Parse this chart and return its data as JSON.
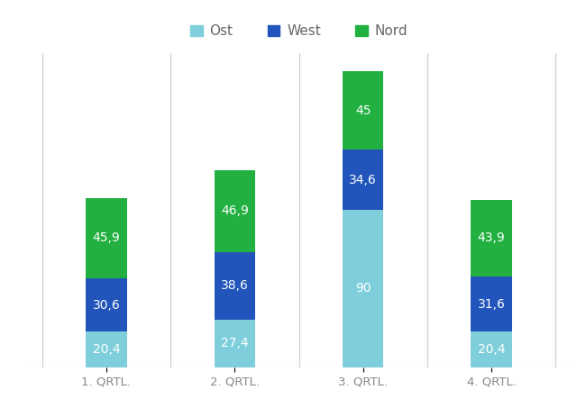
{
  "categories": [
    "1. QRTL.",
    "2. QRTL.",
    "3. QRTL.",
    "4. QRTL."
  ],
  "ost": [
    20.4,
    27.4,
    90.0,
    20.4
  ],
  "west": [
    30.6,
    38.6,
    34.6,
    31.6
  ],
  "nord": [
    45.9,
    46.9,
    45.0,
    43.9
  ],
  "nord_labels": [
    "45,9",
    "46,9",
    "45",
    "43,9"
  ],
  "ost_labels": [
    "20,4",
    "27,4",
    "90",
    "20,4"
  ],
  "west_labels": [
    "30,6",
    "38,6",
    "34,6",
    "31,6"
  ],
  "color_ost": "#7ecfdb",
  "color_west": "#2255bb",
  "color_nord": "#22b040",
  "legend_labels": [
    "Ost",
    "West",
    "Nord"
  ],
  "bar_width": 0.32,
  "background_color": "#ffffff",
  "grid_color": "#cccccc",
  "label_fontsize": 10,
  "tick_fontsize": 9.5,
  "legend_fontsize": 11
}
